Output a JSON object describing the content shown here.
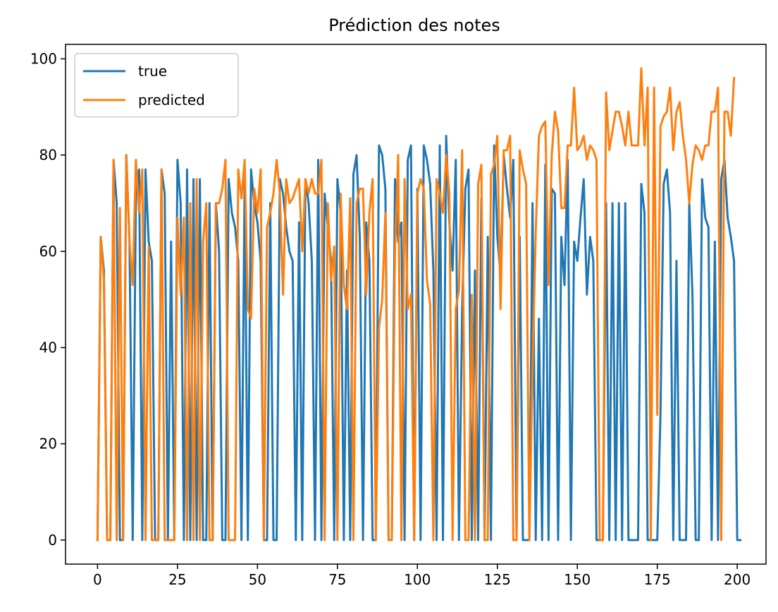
{
  "chart_data": {
    "type": "line",
    "title": "Prédiction des notes",
    "xlabel": "",
    "ylabel": "",
    "xlim": [
      -10,
      209
    ],
    "ylim": [
      -5,
      103
    ],
    "xticks": [
      0,
      25,
      50,
      75,
      100,
      125,
      150,
      175,
      200
    ],
    "yticks": [
      0,
      20,
      40,
      60,
      80,
      100
    ],
    "grid": false,
    "legend_position": "top-left",
    "series": [
      {
        "name": "true",
        "color": "#1f77b4",
        "values": [
          0,
          63,
          56,
          0,
          0,
          79,
          70,
          0,
          0,
          80,
          62,
          0,
          72,
          77,
          0,
          77,
          62,
          58,
          0,
          0,
          77,
          72,
          0,
          62,
          0,
          79,
          70,
          0,
          77,
          0,
          75,
          0,
          75,
          0,
          0,
          70,
          0,
          70,
          60,
          0,
          0,
          75,
          68,
          65,
          58,
          0,
          75,
          0,
          77,
          70,
          66,
          58,
          0,
          0,
          70,
          0,
          0,
          75,
          72,
          65,
          60,
          58,
          0,
          66,
          0,
          75,
          70,
          58,
          0,
          79,
          0,
          72,
          65,
          58,
          0,
          75,
          68,
          0,
          56,
          0,
          76,
          80,
          63,
          0,
          66,
          58,
          0,
          0,
          82,
          80,
          73,
          0,
          0,
          75,
          62,
          66,
          0,
          79,
          82,
          0,
          73,
          0,
          82,
          79,
          74,
          56,
          0,
          82,
          0,
          84,
          66,
          56,
          79,
          0,
          48,
          73,
          77,
          0,
          56,
          0,
          71,
          0,
          63,
          0,
          82,
          63,
          55,
          80,
          73,
          67,
          79,
          0,
          63,
          0,
          0,
          0,
          70,
          0,
          46,
          0,
          78,
          0,
          73,
          72,
          0,
          63,
          53,
          79,
          0,
          62,
          58,
          67,
          75,
          51,
          63,
          58,
          0,
          0,
          0,
          70,
          0,
          70,
          0,
          70,
          0,
          70,
          0,
          0,
          0,
          0,
          74,
          68,
          0,
          0,
          0,
          0,
          26,
          74,
          77,
          68,
          0,
          58,
          0,
          0,
          0,
          70,
          51,
          0,
          0,
          75,
          67,
          65,
          0,
          62,
          0,
          75,
          79,
          67,
          63,
          58,
          0,
          0
        ]
      },
      {
        "name": "predicted",
        "color": "#ff7f0e",
        "values": [
          0,
          63,
          54,
          0,
          0,
          79,
          0,
          69,
          0,
          80,
          62,
          53,
          79,
          68,
          77,
          0,
          61,
          0,
          0,
          0,
          77,
          0,
          0,
          0,
          0,
          67,
          51,
          67,
          0,
          70,
          0,
          75,
          0,
          62,
          70,
          0,
          0,
          70,
          70,
          73,
          79,
          0,
          0,
          0,
          77,
          71,
          79,
          48,
          46,
          73,
          68,
          77,
          0,
          65,
          68,
          72,
          79,
          72,
          51,
          75,
          70,
          71,
          73,
          75,
          60,
          75,
          72,
          75,
          72,
          72,
          79,
          0,
          70,
          54,
          61,
          0,
          72,
          53,
          48,
          71,
          0,
          70,
          73,
          73,
          51,
          68,
          75,
          0,
          44,
          50,
          68,
          0,
          0,
          60,
          80,
          0,
          75,
          48,
          51,
          0,
          72,
          75,
          73,
          54,
          49,
          0,
          75,
          72,
          68,
          80,
          72,
          0,
          48,
          52,
          81,
          0,
          0,
          51,
          0,
          74,
          78,
          0,
          0,
          76,
          78,
          84,
          48,
          81,
          81,
          84,
          0,
          0,
          81,
          77,
          74,
          0,
          36,
          64,
          84,
          86,
          87,
          53,
          80,
          89,
          85,
          69,
          69,
          82,
          82,
          94,
          81,
          82,
          84,
          79,
          82,
          81,
          79,
          0,
          0,
          93,
          81,
          85,
          89,
          89,
          86,
          82,
          89,
          82,
          82,
          82,
          98,
          82,
          94,
          0,
          94,
          26,
          86,
          88,
          89,
          94,
          81,
          89,
          91,
          84,
          79,
          70,
          78,
          82,
          81,
          79,
          82,
          82,
          89,
          89,
          94,
          0,
          89,
          89,
          84,
          96
        ]
      }
    ]
  }
}
